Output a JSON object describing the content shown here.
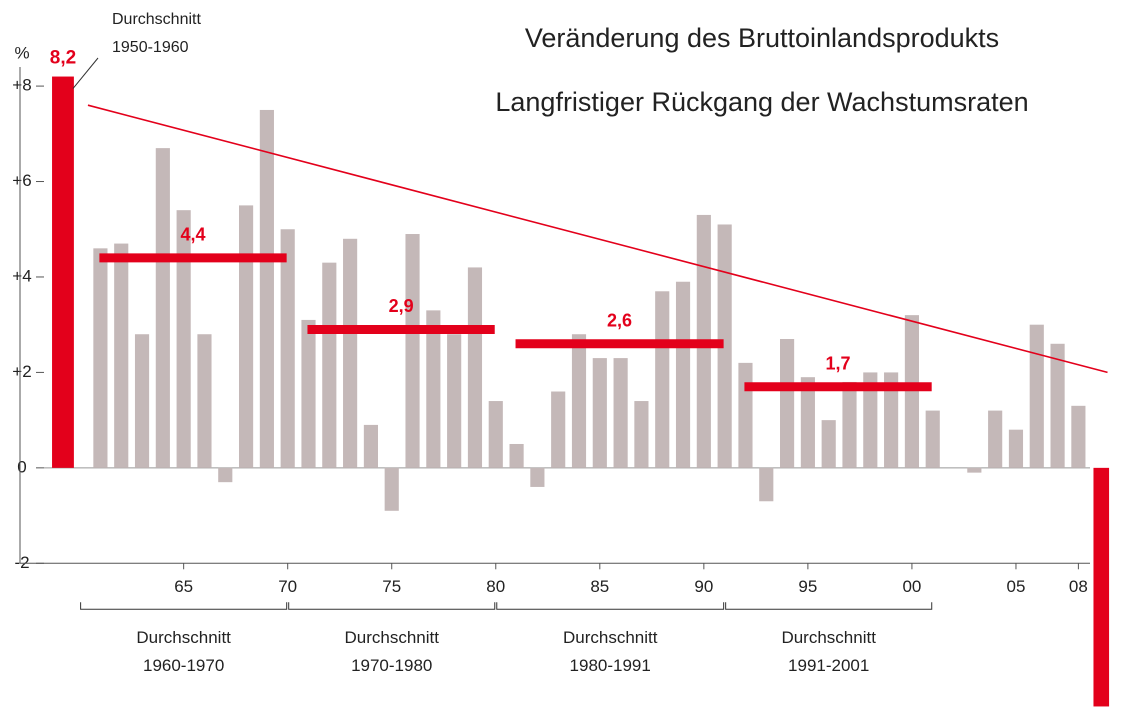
{
  "chart_data": {
    "type": "bar",
    "title": "Veränderung des Bruttoinlandsprodukts",
    "subtitle": "Langfristiger Rückgang der Wachstumsraten",
    "y_label": "%",
    "color": "#c4b8b8",
    "highlight_color": "#e3001b",
    "x": [
      1961,
      1962,
      1963,
      1964,
      1965,
      1966,
      1967,
      1968,
      1969,
      1970,
      1971,
      1972,
      1973,
      1974,
      1975,
      1976,
      1977,
      1978,
      1979,
      1980,
      1981,
      1982,
      1983,
      1984,
      1985,
      1986,
      1987,
      1988,
      1989,
      1990,
      1991,
      1992,
      1993,
      1994,
      1995,
      1996,
      1997,
      1998,
      1999,
      2000,
      2001,
      2002,
      2003,
      2004,
      2005,
      2006,
      2007,
      2008
    ],
    "values": [
      4.6,
      4.7,
      2.8,
      6.7,
      5.4,
      2.8,
      -0.3,
      5.5,
      7.5,
      5.0,
      3.1,
      4.3,
      4.8,
      0.9,
      -0.9,
      4.9,
      3.3,
      2.8,
      4.2,
      1.4,
      0.5,
      -0.4,
      1.6,
      2.8,
      2.3,
      2.3,
      1.4,
      3.7,
      3.9,
      5.3,
      5.1,
      2.2,
      -0.7,
      2.7,
      1.9,
      1.0,
      1.8,
      2.0,
      2.0,
      3.2,
      1.2,
      0.0,
      -0.1,
      1.2,
      0.8,
      3.0,
      2.6,
      1.3
    ],
    "xlim": [
      1958,
      2010
    ],
    "xticks": [
      {
        "value": 1965,
        "label": "65"
      },
      {
        "value": 1970,
        "label": "70"
      },
      {
        "value": 1975,
        "label": "75"
      },
      {
        "value": 1980,
        "label": "80"
      },
      {
        "value": 1985,
        "label": "85"
      },
      {
        "value": 1990,
        "label": "90"
      },
      {
        "value": 1995,
        "label": "95"
      },
      {
        "value": 2000,
        "label": "00"
      },
      {
        "value": 2005,
        "label": "05"
      },
      {
        "value": 2008,
        "label": "08"
      }
    ],
    "ylim": [
      -5.2,
      8.4
    ],
    "yticks": [
      -2,
      0,
      {
        "value": 2,
        "label": "+2"
      },
      {
        "value": 4,
        "label": "+4"
      },
      {
        "value": 6,
        "label": "+6"
      },
      {
        "value": 8,
        "label": "+8"
      }
    ],
    "first_average": {
      "label": "Durchschnitt",
      "period": "1950-1960",
      "x": 1959.2,
      "value": 8.2,
      "value_label": "8,2"
    },
    "last_bar": {
      "x": 2009.1,
      "value": -5
    },
    "averages": [
      {
        "label": "Durchschnitt",
        "period": "1960-1970",
        "span": [
          1961,
          1970
        ],
        "value": 4.4,
        "value_label": "4,4"
      },
      {
        "label": "Durchschnitt",
        "period": "1970-1980",
        "span": [
          1971,
          1980
        ],
        "value": 2.9,
        "value_label": "2,9"
      },
      {
        "label": "Durchschnitt",
        "period": "1980-1991",
        "span": [
          1981,
          1991
        ],
        "value": 2.6,
        "value_label": "2,6"
      },
      {
        "label": "Durchschnitt",
        "period": "1991-2001",
        "span": [
          1992,
          2001
        ],
        "value": 1.7,
        "value_label": "1,7"
      }
    ],
    "trend": {
      "x": [
        1960.4,
        2009.4
      ],
      "values": [
        7.6,
        2.0
      ]
    }
  }
}
